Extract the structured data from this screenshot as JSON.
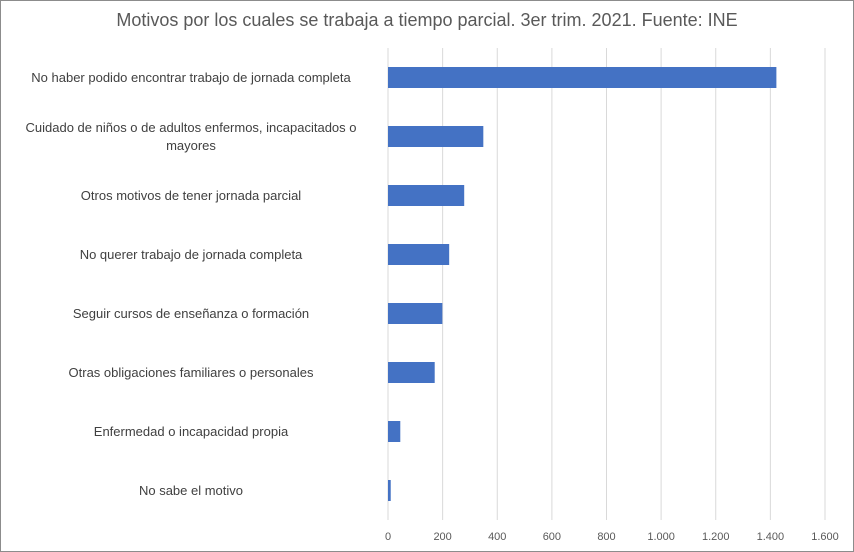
{
  "chart_data": {
    "type": "bar",
    "orientation": "horizontal",
    "title": "Motivos por los cuales se trabaja a tiempo parcial. 3er trim. 2021. Fuente: INE",
    "categories": [
      "No haber podido encontrar trabajo de jornada completa",
      "Cuidado de niños o de adultos enfermos, incapacitados o mayores",
      "Otros motivos de tener jornada parcial",
      "No querer trabajo de jornada completa",
      "Seguir cursos de enseñanza o formación",
      "Otras obligaciones familiares o personales",
      "Enfermedad o incapacidad propia",
      "No sabe el motivo"
    ],
    "values": [
      1422,
      349,
      279,
      224,
      199,
      171,
      45,
      10
    ],
    "xlim": [
      0,
      1600
    ],
    "xticks": [
      "0",
      "200",
      "400",
      "600",
      "800",
      "1.000",
      "1.200",
      "1.400",
      "1.600"
    ],
    "bar_color": "#4472C4",
    "grid": "vertical",
    "legend": "none"
  }
}
